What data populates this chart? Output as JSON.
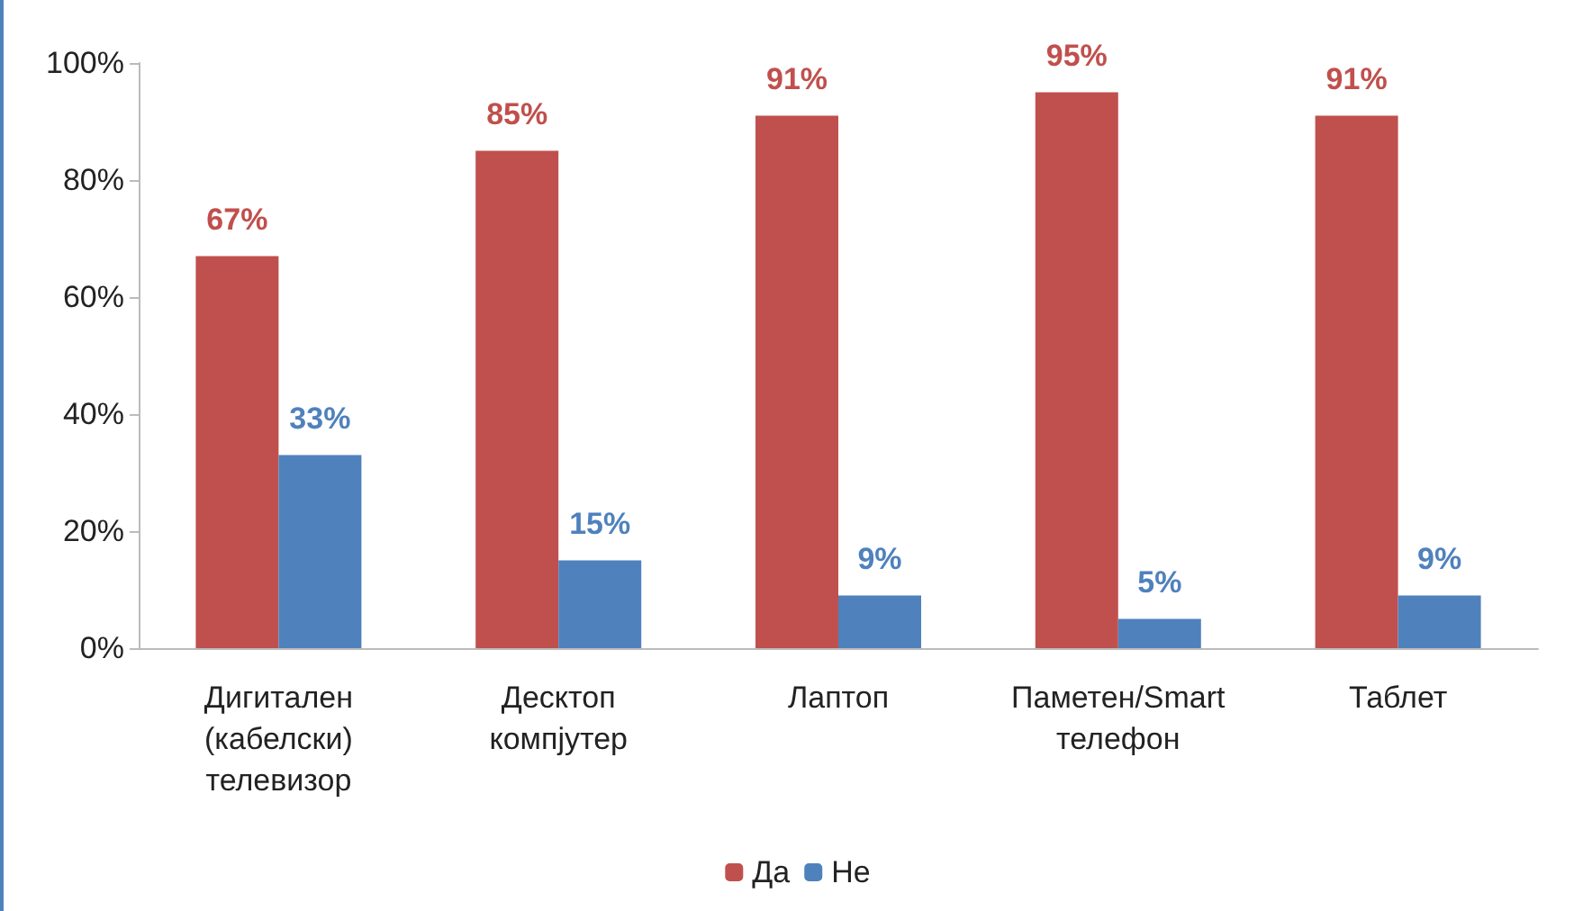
{
  "chart_data": {
    "type": "bar",
    "categories": [
      "Дигитален (кабелски) телевизор",
      "Десктоп компјутер",
      "Лаптоп",
      "Паметен/Smart телефон",
      "Таблет"
    ],
    "series": [
      {
        "name": "Да",
        "color": "#c0504d",
        "values": [
          67,
          85,
          91,
          95,
          91
        ],
        "value_labels": [
          "67%",
          "85%",
          "91%",
          "95%",
          "91%"
        ]
      },
      {
        "name": "Не",
        "color": "#4f81bd",
        "values": [
          33,
          15,
          9,
          5,
          9
        ],
        "value_labels": [
          "33%",
          "15%",
          "9%",
          "5%",
          "9%"
        ]
      }
    ],
    "ylim": [
      0,
      100
    ],
    "yticks": [
      {
        "value": 0,
        "label": "0%"
      },
      {
        "value": 20,
        "label": "20%"
      },
      {
        "value": 40,
        "label": "40%"
      },
      {
        "value": 60,
        "label": "60%"
      },
      {
        "value": 80,
        "label": "80%"
      },
      {
        "value": 100,
        "label": "100%"
      }
    ],
    "grid": false,
    "legend": "bottom"
  }
}
